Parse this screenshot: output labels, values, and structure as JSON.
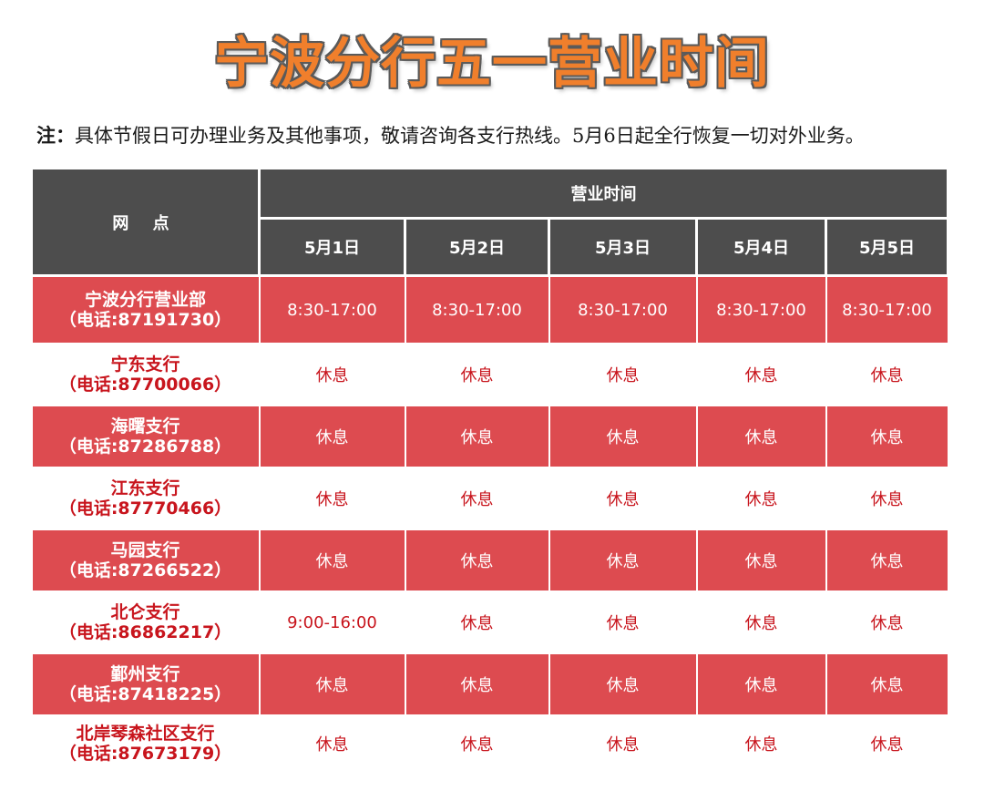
{
  "title": "宁波分行五一营业时间",
  "note": {
    "label": "注：",
    "text": "具体节假日可办理业务及其他事项，敬请咨询各支行热线。5月6日起全行恢复一切对外业务。"
  },
  "table": {
    "branch_header": "网 点",
    "hours_header": "营业时间",
    "dates": [
      "5月1日",
      "5月2日",
      "5月3日",
      "5月4日",
      "5月5日"
    ],
    "rows": [
      {
        "name": "宁波分行营业部",
        "phone": "（电话:87191730）",
        "hours": [
          "8:30-17:00",
          "8:30-17:00",
          "8:30-17:00",
          "8:30-17:00",
          "8:30-17:00"
        ]
      },
      {
        "name": "宁东支行",
        "phone": "（电话:87700066）",
        "hours": [
          "休息",
          "休息",
          "休息",
          "休息",
          "休息"
        ]
      },
      {
        "name": "海曙支行",
        "phone": "（电话:87286788）",
        "hours": [
          "休息",
          "休息",
          "休息",
          "休息",
          "休息"
        ]
      },
      {
        "name": "江东支行",
        "phone": "（电话:87770466）",
        "hours": [
          "休息",
          "休息",
          "休息",
          "休息",
          "休息"
        ]
      },
      {
        "name": "马园支行",
        "phone": "（电话:87266522）",
        "hours": [
          "休息",
          "休息",
          "休息",
          "休息",
          "休息"
        ]
      },
      {
        "name": "北仑支行",
        "phone": "（电话:86862217）",
        "hours": [
          "9:00-16:00",
          "休息",
          "休息",
          "休息",
          "休息"
        ]
      },
      {
        "name": "鄞州支行",
        "phone": "（电话:87418225）",
        "hours": [
          "休息",
          "休息",
          "休息",
          "休息",
          "休息"
        ]
      },
      {
        "name": "北岸琴森社区支行",
        "phone": "（电话:87673179）",
        "hours": [
          "休息",
          "休息",
          "休息",
          "休息",
          "休息"
        ]
      }
    ]
  },
  "colors": {
    "title_fill": "#f07f2c",
    "header_bg": "#4d4d4d",
    "row_red": "#dd4b50",
    "text_red": "#c8151d"
  }
}
